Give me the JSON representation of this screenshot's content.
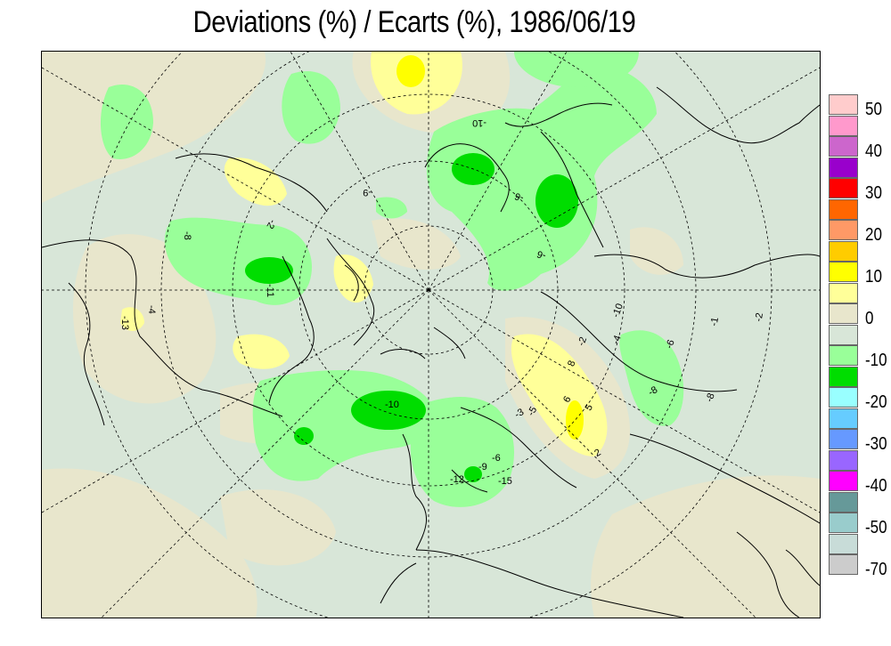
{
  "title": "Deviations (%) / Ecarts (%), 1986/06/19",
  "legend": {
    "items": [
      {
        "color": "#ffcccc",
        "label": "50"
      },
      {
        "color": "#ff99cc",
        "label": ""
      },
      {
        "color": "#cc66cc",
        "label": "40"
      },
      {
        "color": "#9900cc",
        "label": ""
      },
      {
        "color": "#ff0000",
        "label": "30"
      },
      {
        "color": "#ff6600",
        "label": ""
      },
      {
        "color": "#ff9966",
        "label": "20"
      },
      {
        "color": "#ffcc00",
        "label": ""
      },
      {
        "color": "#ffff00",
        "label": "10"
      },
      {
        "color": "#ffff99",
        "label": ""
      },
      {
        "color": "#e8e6cc",
        "label": "0"
      },
      {
        "color": "#d8e6d8",
        "label": ""
      },
      {
        "color": "#99ff99",
        "label": "-10"
      },
      {
        "color": "#00dd00",
        "label": ""
      },
      {
        "color": "#99ffff",
        "label": "-20"
      },
      {
        "color": "#66ccff",
        "label": ""
      },
      {
        "color": "#6699ff",
        "label": "-30"
      },
      {
        "color": "#9966ff",
        "label": ""
      },
      {
        "color": "#ff00ff",
        "label": "-40"
      },
      {
        "color": "#669999",
        "label": ""
      },
      {
        "color": "#99cccc",
        "label": "-50"
      },
      {
        "color": "#c8dcd8",
        "label": ""
      },
      {
        "color": "#cccccc",
        "label": "-70"
      }
    ]
  },
  "contour_labels": [
    "-10",
    "-9",
    "-6",
    "-8",
    "-2",
    "-13",
    "-11",
    "-10",
    "-6",
    "-8",
    "-4",
    "-2",
    "-3",
    "-12",
    "-15",
    "-9",
    "-6",
    "-5",
    "6",
    "8",
    "5",
    "2",
    "-10",
    "-6",
    "-8",
    "-2",
    "-1",
    "-4"
  ]
}
